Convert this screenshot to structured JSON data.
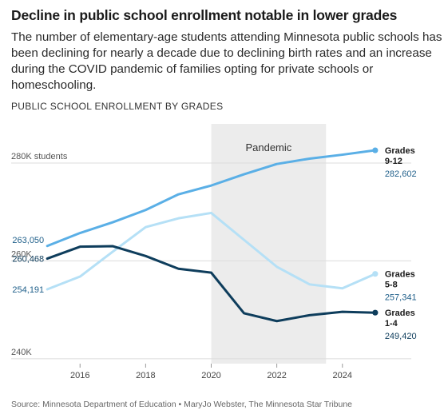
{
  "title": "Decline in public school enrollment notable in lower grades",
  "subtitle": "The number of elementary-age students attending Minnesota public schools has been declining for nearly a decade due to declining birth rates and an increase during the COVID pandemic of families opting for private schools or homeschooling.",
  "chart_heading": "PUBLIC SCHOOL ENROLLMENT BY GRADES",
  "source": "Source: Minnesota Department of Education • MaryJo Webster, The Minnesota Star Tribune",
  "chart_data": {
    "type": "line",
    "x": [
      2015,
      2016,
      2017,
      2018,
      2019,
      2020,
      2021,
      2022,
      2023,
      2024,
      2025
    ],
    "xticks": [
      2016,
      2018,
      2020,
      2022,
      2024
    ],
    "xlim": [
      2013.9,
      2026.1
    ],
    "ylim": [
      239000,
      288000
    ],
    "yticks": [
      {
        "value": 240000,
        "label": "240K"
      },
      {
        "value": 260000,
        "label": "260K"
      },
      {
        "value": 280000,
        "label": "280K students"
      }
    ],
    "shaded_region": {
      "label": "Pandemic",
      "x_start": 2020,
      "x_end": 2023.5,
      "color": "#ececec"
    },
    "grid": "horizontal",
    "series": [
      {
        "name_lines": [
          "Grades",
          "9-12"
        ],
        "color": "#5aafe6",
        "label_color": "#1f5f8a",
        "values": [
          263050,
          265700,
          267900,
          270400,
          273600,
          275400,
          277700,
          279800,
          280900,
          281700,
          282602
        ],
        "start_label": "263,050",
        "end_label": "282,602"
      },
      {
        "name_lines": [
          "Grades",
          "5-8"
        ],
        "color": "#b5e0f6",
        "label_color": "#1f5f8a",
        "values": [
          254191,
          256800,
          261900,
          266900,
          268700,
          269800,
          264300,
          258800,
          255200,
          254400,
          257341
        ],
        "start_label": "254,191",
        "end_label": "257,341"
      },
      {
        "name_lines": [
          "Grades",
          "1-4"
        ],
        "color": "#0e3d5c",
        "label_color": "#0e3d5c",
        "values": [
          260468,
          262900,
          263000,
          261000,
          258400,
          257600,
          249300,
          247700,
          248900,
          249600,
          249420
        ],
        "start_label": "260,468",
        "end_label": "249,420"
      }
    ]
  }
}
